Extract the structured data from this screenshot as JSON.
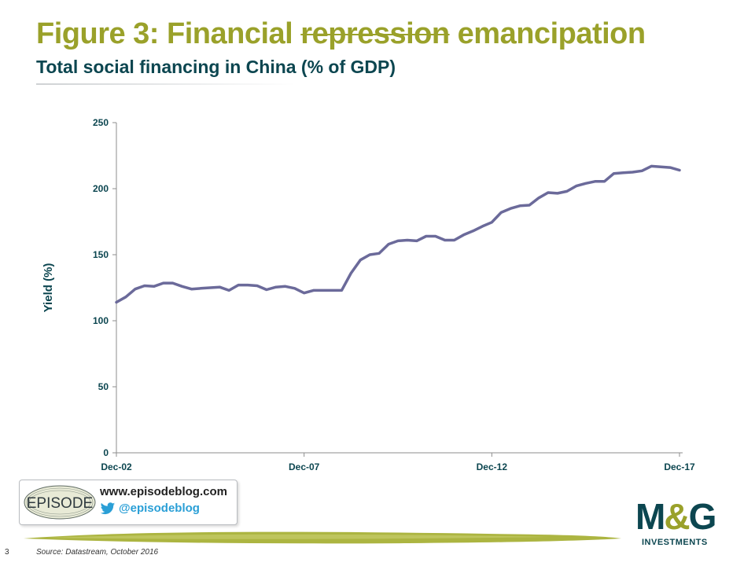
{
  "header": {
    "title_prefix": "Figure 3: Financial ",
    "title_strikethrough": "repression",
    "title_suffix": " emancipation",
    "subtitle": "Total social financing in China (% of GDP)"
  },
  "colors": {
    "title": "#9aa12a",
    "subtitle": "#0c4650",
    "series_line": "#6b6a9a",
    "axis_labels": "#0c4650"
  },
  "chart_data": {
    "type": "line",
    "title": "Total social financing in China (% of GDP)",
    "xlabel": "",
    "ylabel": "Yield (%)",
    "ylim": [
      0,
      250
    ],
    "yticks": [
      0,
      50,
      100,
      150,
      200,
      250
    ],
    "x_start": "Dec-02",
    "x_end": "Dec-17",
    "x_tick_labels": [
      "Dec-02",
      "Dec-07",
      "Dec-12",
      "Dec-17"
    ],
    "frequency": "quarterly",
    "grid": false,
    "legend": "none",
    "series": [
      {
        "values": [
          114,
          118,
          124,
          126.5,
          126,
          128.5,
          128.5,
          126,
          124,
          124.5,
          125,
          125.5,
          123,
          127,
          127,
          126.5,
          123.5,
          125.5,
          126,
          124.5,
          121,
          123,
          123,
          123,
          123,
          136,
          146,
          150,
          151,
          158,
          160.5,
          161,
          160.5,
          164,
          164,
          161,
          161,
          165,
          168,
          171.5,
          174.5,
          182,
          185,
          187,
          187.5,
          193,
          197,
          196.5,
          198,
          202,
          204,
          205.5,
          205.5,
          211.5,
          212,
          212.5,
          213.5,
          217,
          216.5,
          216,
          214
        ]
      }
    ]
  },
  "footer": {
    "episode_logo_text": "EPISODE",
    "blog_url": "www.episodeblog.com",
    "twitter_handle": "@episodeblog",
    "page_number": "3",
    "source": "Source: Datastream, October 2016",
    "company_mark_left": "M",
    "company_mark_amp": "&",
    "company_mark_right": "G",
    "company_sub": "INVESTMENTS"
  }
}
